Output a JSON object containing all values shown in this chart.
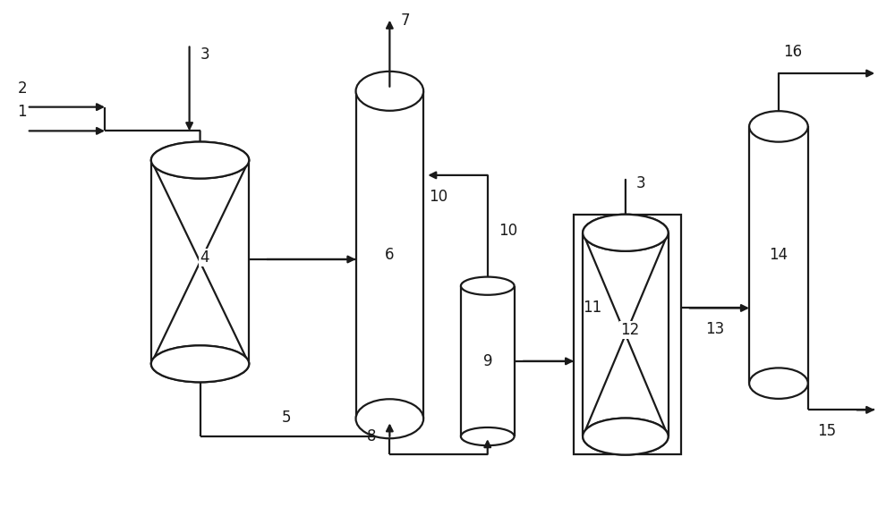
{
  "bg_color": "#ffffff",
  "line_color": "#1a1a1a",
  "line_width": 1.6,
  "font_size": 12,
  "fig_width": 10.0,
  "fig_height": 5.77,
  "dpi": 100
}
